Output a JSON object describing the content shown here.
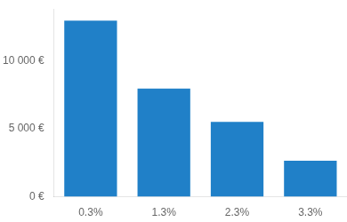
{
  "chart_data": {
    "type": "bar",
    "categories": [
      "0.3%",
      "1.3%",
      "2.3%",
      "3.3%"
    ],
    "values": [
      12950,
      7950,
      5500,
      2650
    ],
    "color": "#2080C8",
    "ylim": [
      0,
      13800
    ],
    "yticks": [
      {
        "value": 0,
        "label": "0 €"
      },
      {
        "value": 5000,
        "label": "5 000 €"
      },
      {
        "value": 10000,
        "label": "10 000 €"
      }
    ],
    "grid": false
  }
}
